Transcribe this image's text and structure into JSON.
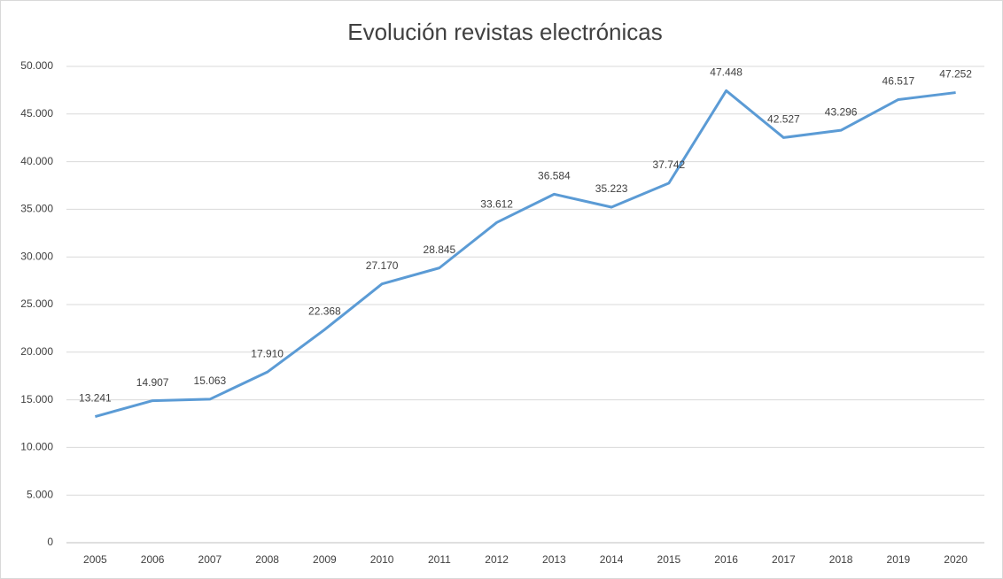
{
  "chart_data": {
    "type": "line",
    "title": "Evolución revistas electrónicas",
    "categories": [
      "2005",
      "2006",
      "2007",
      "2008",
      "2009",
      "2010",
      "2011",
      "2012",
      "2013",
      "2014",
      "2015",
      "2016",
      "2017",
      "2018",
      "2019",
      "2020"
    ],
    "values": [
      13241,
      14907,
      15063,
      17910,
      22368,
      27170,
      28845,
      33612,
      36584,
      35223,
      37742,
      47448,
      42527,
      43296,
      46517,
      47252
    ],
    "value_labels": [
      "13.241",
      "14.907",
      "15.063",
      "17.910",
      "22.368",
      "27.170",
      "28.845",
      "33.612",
      "36.584",
      "35.223",
      "37.742",
      "47.448",
      "42.527",
      "43.296",
      "46.517",
      "47.252"
    ],
    "color": "#5b9bd5",
    "ylim": [
      0,
      50000
    ],
    "yticks": [
      0,
      {
        "value": 5000,
        "label": "5.000"
      },
      {
        "value": 10000,
        "label": "10.000"
      },
      {
        "value": 15000,
        "label": "15.000"
      },
      {
        "value": 20000,
        "label": "20.000"
      },
      {
        "value": 25000,
        "label": "25.000"
      },
      {
        "value": 30000,
        "label": "30.000"
      },
      {
        "value": 35000,
        "label": "35.000"
      },
      {
        "value": 40000,
        "label": "40.000"
      },
      {
        "value": 45000,
        "label": "45.000"
      },
      {
        "value": 50000,
        "label": "50.000"
      }
    ],
    "grid": true
  }
}
